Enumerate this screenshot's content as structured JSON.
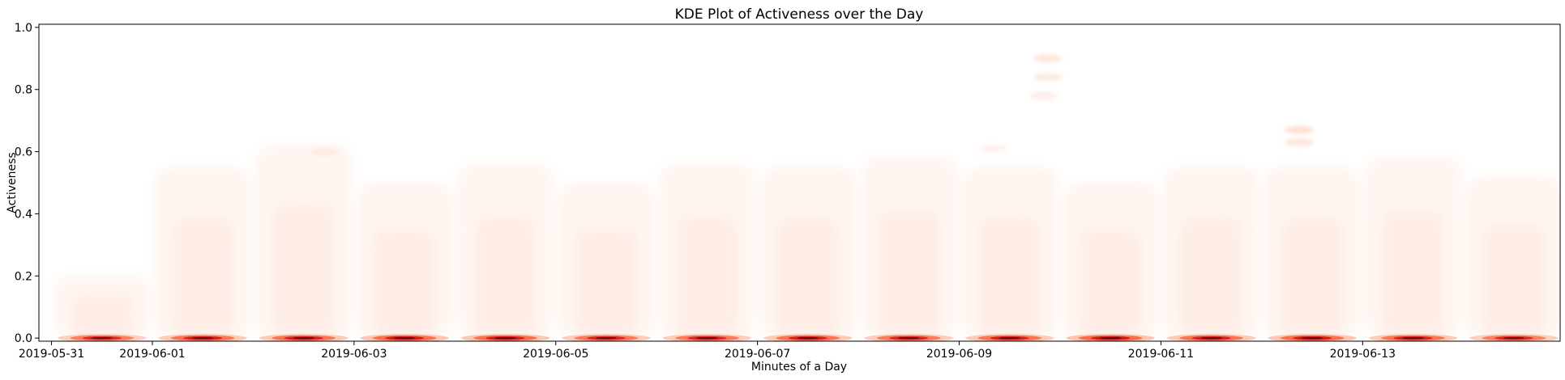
{
  "chart_data": {
    "type": "heatmap",
    "subtype": "kde-density",
    "title": "KDE Plot of Activeness over the Day",
    "xlabel": "Minutes of a Day",
    "ylabel": "Activeness",
    "xlim": [
      "2019-05-30T21:00",
      "2019-06-14T23:00"
    ],
    "ylim": [
      -0.01,
      1.01
    ],
    "x_ticks": [
      "2019-05-31",
      "2019-06-01",
      "2019-06-03",
      "2019-06-05",
      "2019-06-07",
      "2019-06-09",
      "2019-06-11",
      "2019-06-13"
    ],
    "y_ticks": [
      0.0,
      0.2,
      0.4,
      0.6,
      0.8,
      1.0
    ],
    "y_tick_labels": [
      "0.0",
      "0.2",
      "0.4",
      "0.6",
      "0.8",
      "1.0"
    ],
    "grid": false,
    "colormap": "Reds",
    "colors": {
      "dense": "#67000d",
      "high": "#cb181d",
      "mid": "#fb6a4a",
      "low": "#fcbba1",
      "faint": "#fff5f0"
    },
    "dense_bands": [
      {
        "day": "2019-05-31",
        "y": 0.0,
        "intensity": 0.8
      },
      {
        "day": "2019-06-01",
        "y": 0.0,
        "intensity": 0.9
      },
      {
        "day": "2019-06-02",
        "y": 0.0,
        "intensity": 0.9
      },
      {
        "day": "2019-06-03",
        "y": 0.0,
        "intensity": 0.95
      },
      {
        "day": "2019-06-04",
        "y": 0.0,
        "intensity": 0.95
      },
      {
        "day": "2019-06-05",
        "y": 0.0,
        "intensity": 0.85
      },
      {
        "day": "2019-06-06",
        "y": 0.0,
        "intensity": 0.85
      },
      {
        "day": "2019-06-07",
        "y": 0.0,
        "intensity": 0.9
      },
      {
        "day": "2019-06-08",
        "y": 0.0,
        "intensity": 0.85
      },
      {
        "day": "2019-06-09",
        "y": 0.0,
        "intensity": 0.9
      },
      {
        "day": "2019-06-10",
        "y": 0.0,
        "intensity": 1.0
      },
      {
        "day": "2019-06-11",
        "y": 0.0,
        "intensity": 0.9
      },
      {
        "day": "2019-06-12",
        "y": 0.0,
        "intensity": 0.95
      },
      {
        "day": "2019-06-13",
        "y": 0.0,
        "intensity": 0.9
      },
      {
        "day": "2019-06-14",
        "y": 0.0,
        "intensity": 0.8
      }
    ],
    "activity_spread": [
      {
        "day": "2019-05-31",
        "max_y": 0.2
      },
      {
        "day": "2019-06-01",
        "max_y": 0.55
      },
      {
        "day": "2019-06-02",
        "max_y": 0.62
      },
      {
        "day": "2019-06-03",
        "max_y": 0.5
      },
      {
        "day": "2019-06-04",
        "max_y": 0.56
      },
      {
        "day": "2019-06-05",
        "max_y": 0.5
      },
      {
        "day": "2019-06-06",
        "max_y": 0.56
      },
      {
        "day": "2019-06-07",
        "max_y": 0.55
      },
      {
        "day": "2019-06-08",
        "max_y": 0.58
      },
      {
        "day": "2019-06-09",
        "max_y": 0.55
      },
      {
        "day": "2019-06-10",
        "max_y": 0.5
      },
      {
        "day": "2019-06-11",
        "max_y": 0.55
      },
      {
        "day": "2019-06-12",
        "max_y": 0.55
      },
      {
        "day": "2019-06-13",
        "max_y": 0.58
      },
      {
        "day": "2019-06-14",
        "max_y": 0.52
      }
    ],
    "isolated_blobs": [
      {
        "x": "2019-06-09T21:00",
        "y": 0.9,
        "intensity": 0.12
      },
      {
        "x": "2019-06-09T21:00",
        "y": 0.84,
        "intensity": 0.1
      },
      {
        "x": "2019-06-09T20:00",
        "y": 0.78,
        "intensity": 0.08
      },
      {
        "x": "2019-06-12T09:00",
        "y": 0.67,
        "intensity": 0.15
      },
      {
        "x": "2019-06-12T09:00",
        "y": 0.63,
        "intensity": 0.12
      },
      {
        "x": "2019-06-02T17:00",
        "y": 0.6,
        "intensity": 0.06
      },
      {
        "x": "2019-06-09T08:00",
        "y": 0.61,
        "intensity": 0.06
      }
    ]
  }
}
